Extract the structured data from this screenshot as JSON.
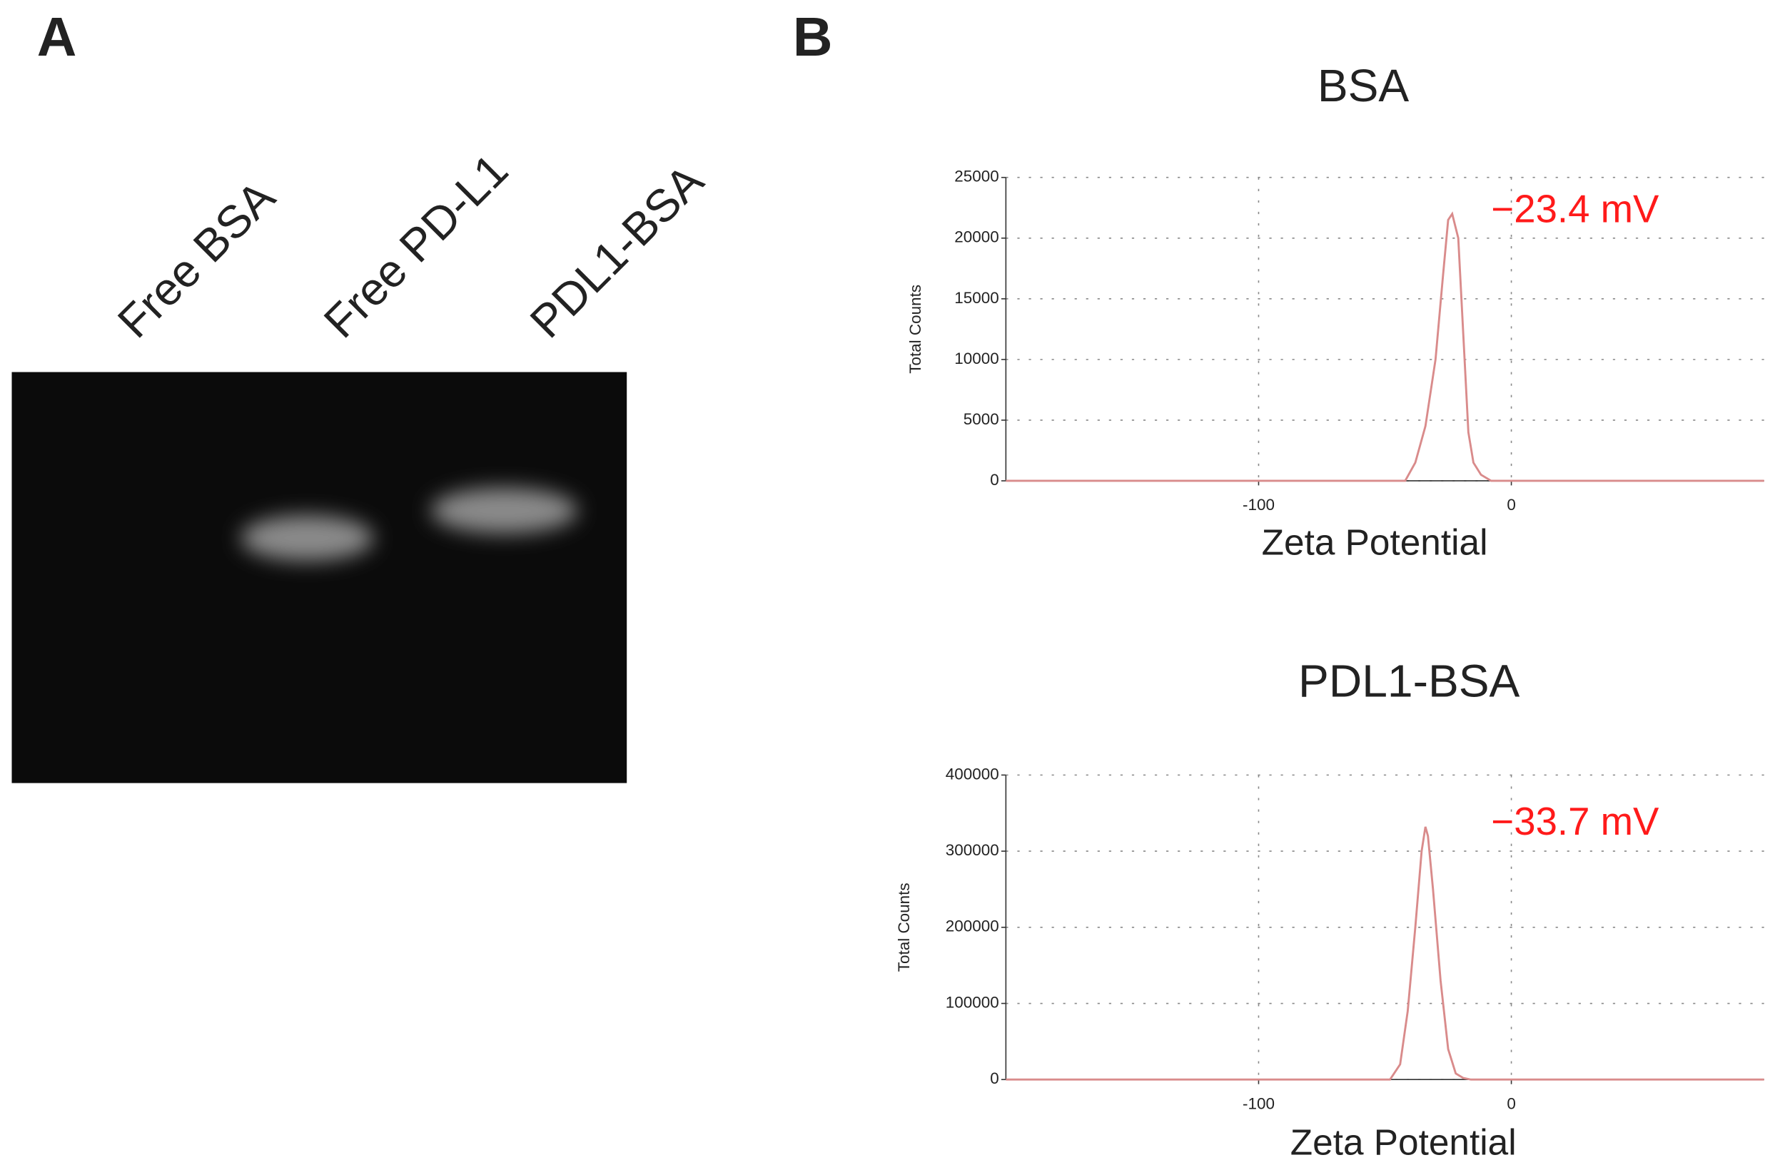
{
  "panel_labels": [
    "A",
    "B"
  ],
  "gel": {
    "lanes": [
      "Free BSA",
      "Free PD-L1",
      "PDL1-BSA"
    ]
  },
  "chart_data": [
    {
      "type": "line",
      "title": "BSA",
      "x_label": "Zeta Potential",
      "y_label": "Total Counts",
      "annotation": "−23.4 mV",
      "annotation_color": "#ff1a1a",
      "x": [
        -200,
        -42,
        -38,
        -34,
        -30,
        -27,
        -25,
        -23.4,
        -21,
        -19,
        -17,
        -15,
        -12,
        -8,
        -5,
        100
      ],
      "series": [
        {
          "color": "#d98b8b",
          "values": [
            0,
            0,
            1500,
            4500,
            10000,
            17000,
            21500,
            22000,
            20000,
            12000,
            4000,
            1500,
            500,
            0,
            0,
            0
          ]
        }
      ],
      "xlim": [
        -200,
        100
      ],
      "xticks": [
        -100,
        0
      ],
      "ylim": [
        0,
        25000
      ],
      "yticks": [
        0,
        5000,
        10000,
        15000,
        20000,
        25000
      ],
      "grid": true
    },
    {
      "type": "line",
      "title": "PDL1-BSA",
      "x_label": "Zeta Potential",
      "y_label": "Total Counts",
      "annotation": "−33.7 mV",
      "annotation_color": "#ff1a1a",
      "x": [
        -200,
        -48,
        -44,
        -41,
        -38,
        -35.5,
        -34,
        -33,
        -31,
        -28,
        -25,
        -22,
        -19,
        -16,
        100
      ],
      "series": [
        {
          "color": "#d98b8b",
          "values": [
            0,
            0,
            20000,
            90000,
            200000,
            300000,
            332000,
            320000,
            250000,
            130000,
            40000,
            8000,
            2000,
            0,
            0
          ]
        }
      ],
      "xlim": [
        -200,
        100
      ],
      "xticks": [
        -100,
        0
      ],
      "ylim": [
        0,
        400000
      ],
      "yticks": [
        0,
        100000,
        200000,
        300000,
        400000
      ],
      "grid": true
    }
  ]
}
